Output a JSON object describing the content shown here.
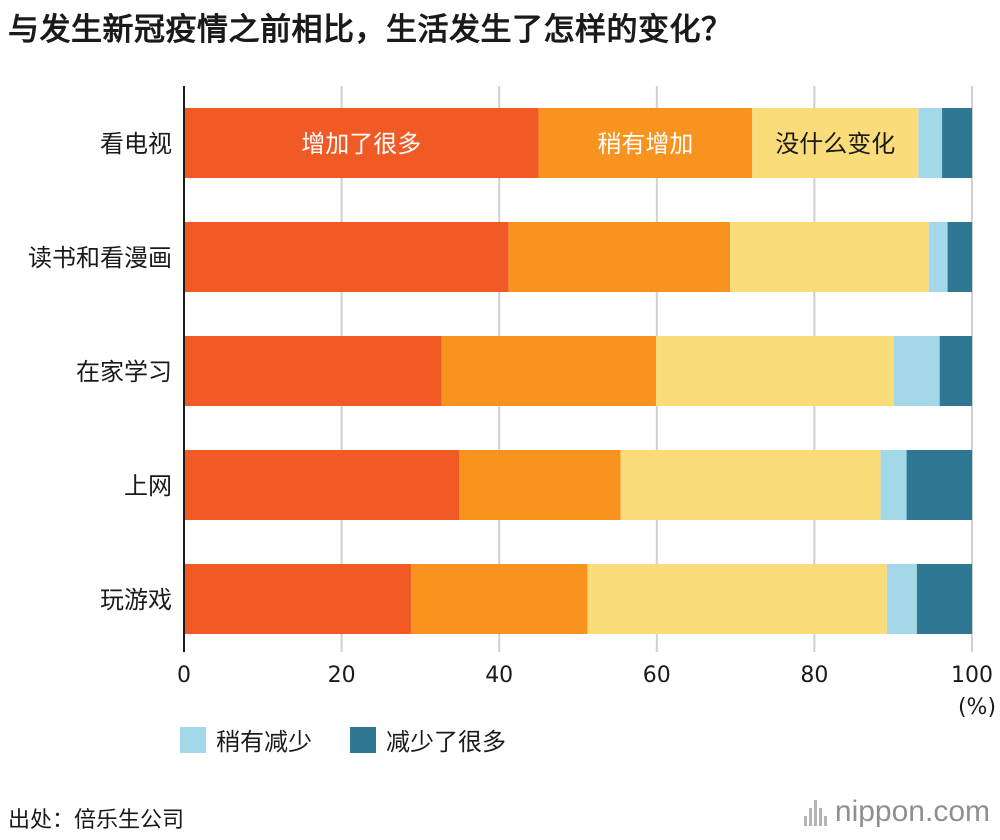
{
  "chart_data": {
    "type": "bar",
    "orientation": "horizontal",
    "stacked": true,
    "title": "与发生新冠疫情之前相比，生活发生了怎样的变化？",
    "categories": [
      "看电视",
      "读书和看漫画",
      "在家学习",
      "上网",
      "玩游戏"
    ],
    "series": [
      {
        "name": "增加了很多",
        "color": "#f15a24",
        "values": [
          45.0,
          41.2,
          32.7,
          34.9,
          28.8
        ]
      },
      {
        "name": "稍有增加",
        "color": "#f7931e",
        "values": [
          27.1,
          28.1,
          27.2,
          20.5,
          22.4
        ]
      },
      {
        "name": "没什么变化",
        "color": "#fbdc7a",
        "values": [
          21.1,
          25.2,
          30.2,
          33.0,
          38.0
        ]
      },
      {
        "name": "稍有减少",
        "color": "#a3d8e8",
        "values": [
          3.0,
          2.4,
          5.8,
          3.3,
          3.8
        ]
      },
      {
        "name": "减少了很多",
        "color": "#2e7893",
        "values": [
          3.8,
          3.1,
          4.1,
          8.3,
          7.0
        ]
      }
    ],
    "inline_labels": [
      {
        "category": "看电视",
        "series": "增加了很多",
        "text": "增加了很多",
        "color": "#ffffff"
      },
      {
        "category": "看电视",
        "series": "稍有增加",
        "text": "稍有增加",
        "color": "#ffffff"
      },
      {
        "category": "看电视",
        "series": "没什么变化",
        "text": "没什么变化",
        "color": "#1a1a1a"
      }
    ],
    "xlim": [
      0,
      100
    ],
    "xticks": [
      0,
      20,
      40,
      60,
      80,
      100
    ],
    "x_unit": "(%)",
    "grid": true,
    "legend": {
      "placement": "bottom-left",
      "entries": [
        {
          "name": "稍有减少",
          "color": "#a3d8e8"
        },
        {
          "name": "减少了很多",
          "color": "#2e7893"
        }
      ]
    }
  },
  "footer": {
    "source": "出处：倍乐生公司",
    "brand": "nippon.com"
  }
}
